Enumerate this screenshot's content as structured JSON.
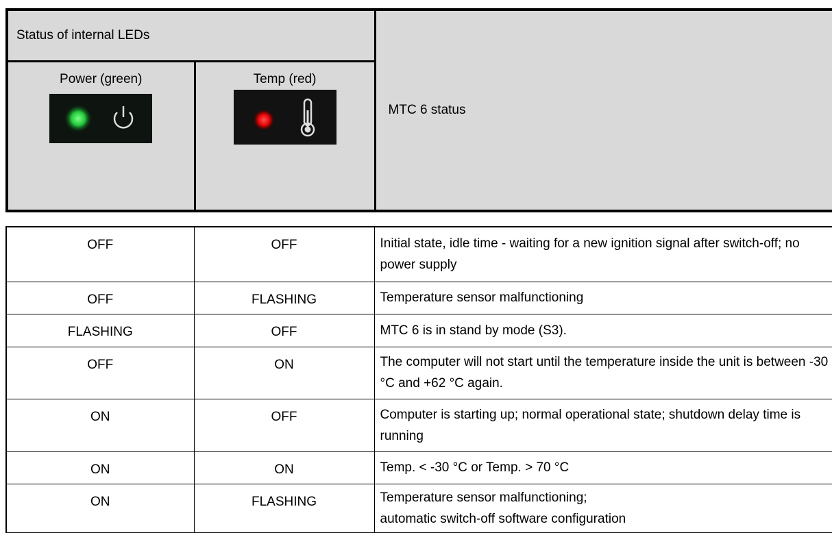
{
  "header": {
    "title": "Status of internal LEDs",
    "power": "Power (green)",
    "temp": "Temp (red)",
    "status": "MTC 6 status"
  },
  "table": {
    "rows": [
      [
        "OFF",
        "OFF",
        "Initial state, idle time - waiting for a new ignition signal after switch-off; no power supply"
      ],
      [
        "OFF",
        "FLASHING",
        "Temperature sensor malfunctioning"
      ],
      [
        "FLASHING",
        "OFF",
        "MTC 6 is in stand by mode (S3)."
      ],
      [
        "OFF",
        "ON",
        "The computer will not start until the temperature inside the unit is between -30 °C and +62 °C again."
      ],
      [
        "ON",
        "OFF",
        "Computer is starting up; normal operational state; shutdown delay time is running"
      ],
      [
        "ON",
        "ON",
        "Temp. < -30 °C or Temp. > 70 °C"
      ],
      [
        "ON",
        "FLASHING",
        "Temperature sensor malfunctioning;\nautomatic switch-off software configuration"
      ]
    ]
  }
}
